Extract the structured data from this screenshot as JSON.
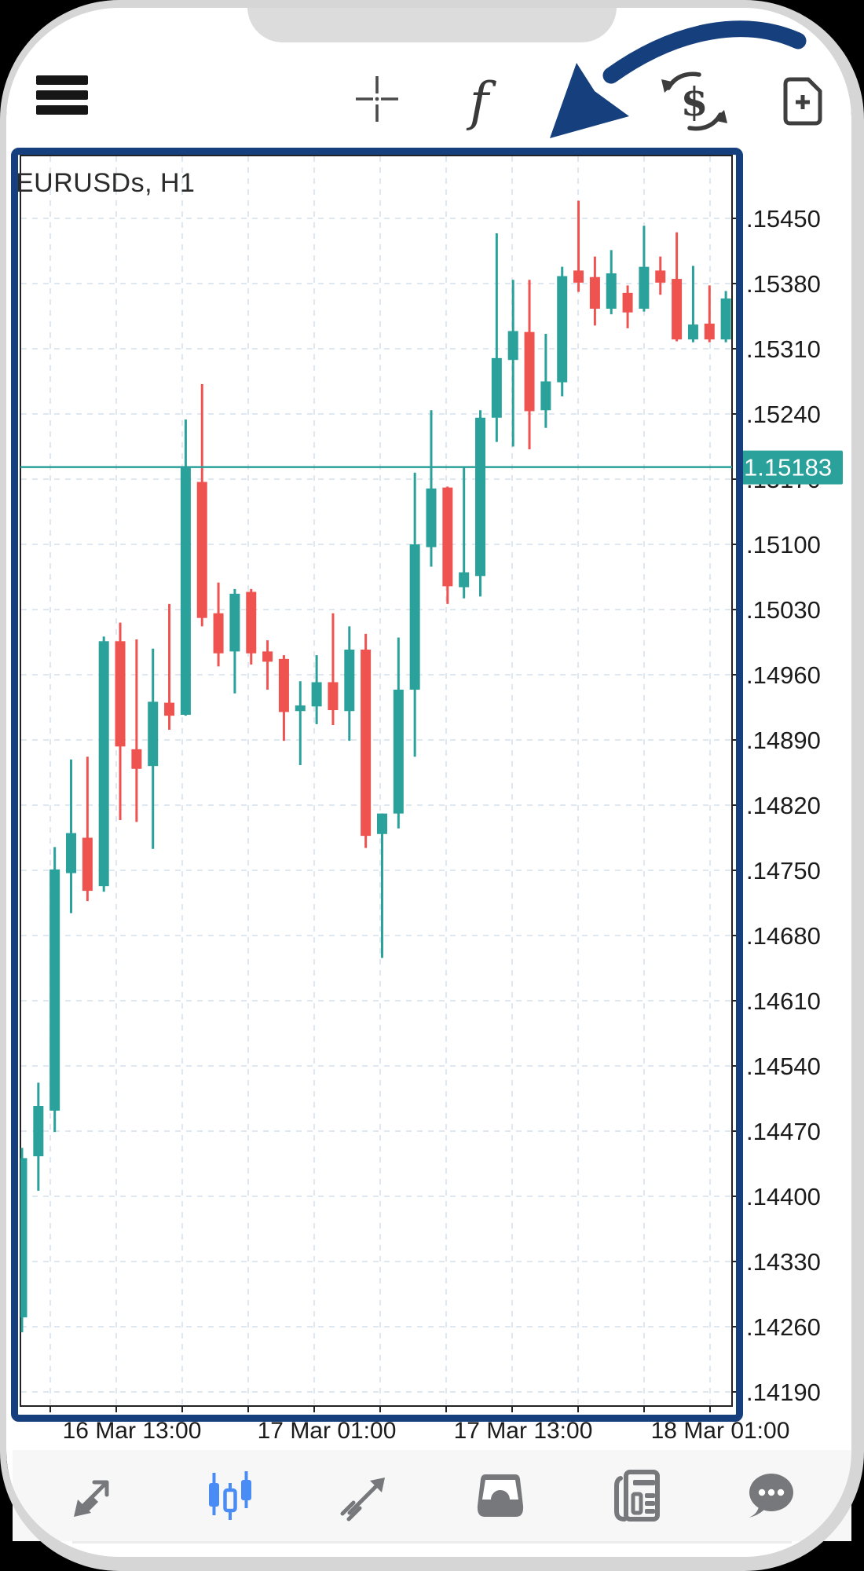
{
  "device": {
    "type": "phone-mockup"
  },
  "header": {
    "icons": [
      {
        "name": "menu"
      },
      {
        "name": "crosshair"
      },
      {
        "name": "function",
        "glyph": "f"
      },
      {
        "name": "currency-exchange",
        "glyph": "$"
      },
      {
        "name": "new-order"
      }
    ]
  },
  "chart_data": {
    "type": "candlestick",
    "title": "EURUSDs, H1",
    "symbol": "EURUSDs",
    "timeframe": "H1",
    "grid": true,
    "price_line": {
      "label": "1.15183",
      "value": 1.15183
    },
    "y_axis": {
      "top_value": 1.1545,
      "step": 0.0007,
      "labels": [
        ".15450",
        ".15380",
        ".15310",
        ".15240",
        ".15170",
        ".15100",
        ".15030",
        ".14960",
        ".14890",
        ".14820",
        ".14750",
        ".14680",
        ".14610",
        ".14540",
        ".14470",
        ".14400",
        ".14330",
        ".14260",
        ".14190"
      ]
    },
    "x_axis": {
      "labels": [
        "16 Mar 13:00",
        "17 Mar 01:00",
        "17 Mar 13:00",
        "18 Mar 01:00"
      ]
    },
    "candles_columns": [
      "open",
      "high",
      "low",
      "close"
    ],
    "candles": [
      [
        1.1427,
        1.14452,
        1.14254,
        1.14441
      ],
      [
        1.14443,
        1.14522,
        1.14406,
        1.14497
      ],
      [
        1.14492,
        1.14775,
        1.14469,
        1.14751
      ],
      [
        1.14747,
        1.14869,
        1.14704,
        1.1479
      ],
      [
        1.14785,
        1.14872,
        1.14717,
        1.14728
      ],
      [
        1.14733,
        1.15001,
        1.14727,
        1.14996
      ],
      [
        1.14996,
        1.15016,
        1.14804,
        1.14883
      ],
      [
        1.1488,
        1.14998,
        1.14802,
        1.14859
      ],
      [
        1.14862,
        1.14988,
        1.14773,
        1.14931
      ],
      [
        1.1493,
        1.15036,
        1.14901,
        1.14916
      ],
      [
        1.14917,
        1.15234,
        1.14916,
        1.15183
      ],
      [
        1.15167,
        1.15272,
        1.15012,
        1.15021
      ],
      [
        1.15026,
        1.15059,
        1.14969,
        1.14983
      ],
      [
        1.14985,
        1.15052,
        1.1494,
        1.15047
      ],
      [
        1.15049,
        1.15052,
        1.14971,
        1.14983
      ],
      [
        1.14985,
        1.14997,
        1.14944,
        1.14974
      ],
      [
        1.14977,
        1.14981,
        1.14889,
        1.1492
      ],
      [
        1.14921,
        1.14953,
        1.14863,
        1.14927
      ],
      [
        1.14926,
        1.14981,
        1.14907,
        1.14952
      ],
      [
        1.14952,
        1.15026,
        1.14906,
        1.14922
      ],
      [
        1.14921,
        1.15012,
        1.14889,
        1.14987
      ],
      [
        1.14987,
        1.15004,
        1.14774,
        1.14787
      ],
      [
        1.14789,
        1.14811,
        1.14656,
        1.14811
      ],
      [
        1.14811,
        1.15,
        1.14795,
        1.14944
      ],
      [
        1.14944,
        1.15177,
        1.14872,
        1.151
      ],
      [
        1.15097,
        1.15244,
        1.15076,
        1.1516
      ],
      [
        1.15161,
        1.15162,
        1.15036,
        1.15055
      ],
      [
        1.15054,
        1.15183,
        1.15042,
        1.1507
      ],
      [
        1.15066,
        1.15244,
        1.15044,
        1.15236
      ],
      [
        1.15236,
        1.15434,
        1.1521,
        1.153
      ],
      [
        1.15298,
        1.15384,
        1.15205,
        1.15329
      ],
      [
        1.15328,
        1.15384,
        1.15202,
        1.15243
      ],
      [
        1.15244,
        1.15326,
        1.15225,
        1.15275
      ],
      [
        1.15274,
        1.15398,
        1.15259,
        1.15388
      ],
      [
        1.15394,
        1.15469,
        1.15371,
        1.15381
      ],
      [
        1.15387,
        1.15409,
        1.15335,
        1.15353
      ],
      [
        1.15353,
        1.15416,
        1.15347,
        1.15391
      ],
      [
        1.1537,
        1.15378,
        1.15332,
        1.15349
      ],
      [
        1.15353,
        1.15442,
        1.1535,
        1.15398
      ],
      [
        1.15394,
        1.15409,
        1.15368,
        1.15381
      ],
      [
        1.15385,
        1.15435,
        1.15318,
        1.1532
      ],
      [
        1.1532,
        1.15399,
        1.15317,
        1.15336
      ],
      [
        1.15337,
        1.15378,
        1.15317,
        1.1532
      ],
      [
        1.1532,
        1.15372,
        1.15317,
        1.15364
      ]
    ],
    "colors": {
      "up": "#2aa19a",
      "down": "#ef5350",
      "grid": "#dfe8f0",
      "frame": "#222222",
      "text": "#1b1b1b"
    }
  },
  "annotation": {
    "style": "hand-drawn-arrow-and-border",
    "color": "#153f7d"
  },
  "bottom_nav": {
    "active_color": "#4a8cf5",
    "inactive_color": "#77787b",
    "items": [
      {
        "name": "quotes",
        "active": false
      },
      {
        "name": "charts",
        "active": true
      },
      {
        "name": "trade",
        "active": false
      },
      {
        "name": "history",
        "active": false
      },
      {
        "name": "news",
        "active": false
      },
      {
        "name": "messages",
        "active": false
      }
    ]
  }
}
